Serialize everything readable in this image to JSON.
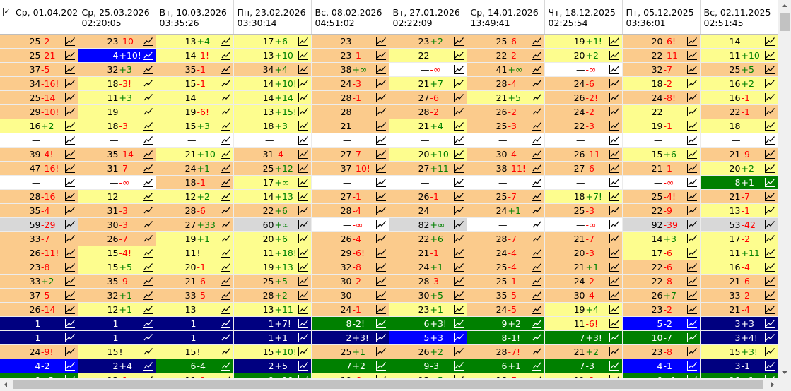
{
  "grid": {
    "select_all_mark": "✓",
    "icon": "trend-chart-icon",
    "colors": {
      "w": "#ffffff",
      "o": "#fbcb8c",
      "y": "#fdfd8e",
      "g": "#d8d8d8",
      "b": "#0000ff",
      "n": "#000080",
      "G": "#008000",
      "positive": "#008000",
      "negative": "#ff0000"
    },
    "columns": [
      {
        "date": "Ср, 01.04.2026 ...",
        "time": ""
      },
      {
        "date": "Ср, 25.03.2026",
        "time": "02:20:05"
      },
      {
        "date": "Вт, 10.03.2026",
        "time": "03:35:26"
      },
      {
        "date": "Пн, 23.02.2026",
        "time": "03:30:14"
      },
      {
        "date": "Вс, 08.02.2026",
        "time": "04:51:02"
      },
      {
        "date": "Вт, 27.01.2026",
        "time": "02:22:09"
      },
      {
        "date": "Ср, 14.01.2026",
        "time": "13:49:41"
      },
      {
        "date": "Чт, 18.12.2025",
        "time": "02:25:54"
      },
      {
        "date": "Пт, 05.12.2025",
        "time": "03:36:01"
      },
      {
        "date": "Вс, 02.11.2025",
        "time": "02:51:45"
      }
    ],
    "rows": [
      [
        [
          "25",
          "-2",
          "o"
        ],
        [
          "23",
          "-10",
          "o"
        ],
        [
          "13",
          "+4",
          "y"
        ],
        [
          "17",
          "+6",
          "y"
        ],
        [
          "23",
          "",
          "o"
        ],
        [
          "23",
          "+2",
          "o"
        ],
        [
          "25",
          "-6",
          "o"
        ],
        [
          "19",
          "+1!",
          "y"
        ],
        [
          "20",
          "-6!",
          "o"
        ],
        [
          "14",
          "",
          "y"
        ]
      ],
      [
        [
          "25",
          "-21",
          "o"
        ],
        [
          "4",
          "+10!",
          "b"
        ],
        [
          "14",
          "-1!",
          "y"
        ],
        [
          "13",
          "+10",
          "y"
        ],
        [
          "23",
          "-1",
          "o"
        ],
        [
          "22",
          "",
          "y"
        ],
        [
          "22",
          "-2",
          "o"
        ],
        [
          "20",
          "+2",
          "y"
        ],
        [
          "22",
          "-11",
          "o"
        ],
        [
          "11",
          "+10",
          "y"
        ]
      ],
      [
        [
          "37",
          "-5",
          "o"
        ],
        [
          "32",
          "+3",
          "o"
        ],
        [
          "35",
          "-1",
          "o"
        ],
        [
          "34",
          "+4",
          "o"
        ],
        [
          "38",
          "+∞",
          "o"
        ],
        [
          "—",
          "-∞",
          "w"
        ],
        [
          "41",
          "+∞",
          "o"
        ],
        [
          "—",
          "-∞",
          "w"
        ],
        [
          "32",
          "-7",
          "o"
        ],
        [
          "25",
          "+5",
          "o"
        ]
      ],
      [
        [
          "34",
          "-16!",
          "o"
        ],
        [
          "18",
          "-3!",
          "y"
        ],
        [
          "15",
          "-1",
          "y"
        ],
        [
          "14",
          "+10!",
          "y"
        ],
        [
          "24",
          "-3",
          "o"
        ],
        [
          "21",
          "+7",
          "y"
        ],
        [
          "28",
          "-4",
          "o"
        ],
        [
          "24",
          "-6",
          "o"
        ],
        [
          "18",
          "-2",
          "y"
        ],
        [
          "16",
          "+2",
          "y"
        ]
      ],
      [
        [
          "25",
          "-14",
          "o"
        ],
        [
          "11",
          "+3",
          "y"
        ],
        [
          "14",
          "",
          "y"
        ],
        [
          "14",
          "+14",
          "y"
        ],
        [
          "28",
          "-1",
          "o"
        ],
        [
          "27",
          "-6",
          "o"
        ],
        [
          "21",
          "+5",
          "y"
        ],
        [
          "26",
          "-2!",
          "o"
        ],
        [
          "24",
          "-8!",
          "o"
        ],
        [
          "16",
          "-1",
          "y"
        ]
      ],
      [
        [
          "29",
          "-10!",
          "o"
        ],
        [
          "19",
          "",
          "y"
        ],
        [
          "19",
          "-6!",
          "y"
        ],
        [
          "13",
          "+15!",
          "y"
        ],
        [
          "28",
          "",
          "o"
        ],
        [
          "28",
          "-2",
          "o"
        ],
        [
          "26",
          "-2",
          "o"
        ],
        [
          "24",
          "-2",
          "o"
        ],
        [
          "22",
          "",
          "y"
        ],
        [
          "22",
          "-1",
          "o"
        ]
      ],
      [
        [
          "16",
          "+2",
          "y"
        ],
        [
          "18",
          "-3",
          "y"
        ],
        [
          "15",
          "+3",
          "y"
        ],
        [
          "18",
          "+3",
          "y"
        ],
        [
          "21",
          "",
          "o"
        ],
        [
          "21",
          "+4",
          "y"
        ],
        [
          "25",
          "-3",
          "o"
        ],
        [
          "22",
          "-3",
          "o"
        ],
        [
          "19",
          "-1",
          "y"
        ],
        [
          "18",
          "",
          "y"
        ]
      ],
      [
        [
          "—",
          "",
          "w"
        ],
        [
          "—",
          "",
          "w"
        ],
        [
          "—",
          "",
          "w"
        ],
        [
          "—",
          "",
          "w"
        ],
        [
          "—",
          "",
          "w"
        ],
        [
          "—",
          "",
          "w"
        ],
        [
          "—",
          "",
          "w"
        ],
        [
          "—",
          "",
          "w"
        ],
        [
          "—",
          "",
          "w"
        ],
        [
          "—",
          "",
          "w"
        ]
      ],
      [
        [
          "39",
          "-4!",
          "o"
        ],
        [
          "35",
          "-14",
          "o"
        ],
        [
          "21",
          "+10",
          "y"
        ],
        [
          "31",
          "-4",
          "o"
        ],
        [
          "27",
          "-7",
          "o"
        ],
        [
          "20",
          "+10",
          "y"
        ],
        [
          "30",
          "-4",
          "o"
        ],
        [
          "26",
          "-11",
          "o"
        ],
        [
          "15",
          "+6",
          "y"
        ],
        [
          "21",
          "-9",
          "o"
        ]
      ],
      [
        [
          "47",
          "-16!",
          "o"
        ],
        [
          "31",
          "-7",
          "o"
        ],
        [
          "24",
          "+1",
          "o"
        ],
        [
          "25",
          "+12",
          "o"
        ],
        [
          "37",
          "-10!",
          "o"
        ],
        [
          "27",
          "+11",
          "o"
        ],
        [
          "38",
          "-11!",
          "o"
        ],
        [
          "27",
          "-6",
          "o"
        ],
        [
          "21",
          "-1",
          "o"
        ],
        [
          "20",
          "+2",
          "y"
        ]
      ],
      [
        [
          "—",
          "",
          "w"
        ],
        [
          "—",
          "-∞",
          "w"
        ],
        [
          "18",
          "-1",
          "o"
        ],
        [
          "17",
          "+∞",
          "y"
        ],
        [
          "—",
          "",
          "w"
        ],
        [
          "—",
          "",
          "w"
        ],
        [
          "—",
          "",
          "w"
        ],
        [
          "—",
          "",
          "w"
        ],
        [
          "—",
          "-∞",
          "w"
        ],
        [
          "8",
          "+1",
          "G"
        ]
      ],
      [
        [
          "28",
          "-16",
          "o"
        ],
        [
          "12",
          "",
          "y"
        ],
        [
          "12",
          "+2",
          "y"
        ],
        [
          "14",
          "+13",
          "y"
        ],
        [
          "27",
          "-1",
          "o"
        ],
        [
          "26",
          "-1",
          "o"
        ],
        [
          "25",
          "-7",
          "o"
        ],
        [
          "18",
          "+7!",
          "y"
        ],
        [
          "25",
          "-4!",
          "o"
        ],
        [
          "21",
          "-7",
          "o"
        ]
      ],
      [
        [
          "35",
          "-4",
          "o"
        ],
        [
          "31",
          "-3",
          "o"
        ],
        [
          "28",
          "-6",
          "o"
        ],
        [
          "22",
          "+6",
          "o"
        ],
        [
          "28",
          "-4",
          "o"
        ],
        [
          "24",
          "",
          "o"
        ],
        [
          "24",
          "+1",
          "o"
        ],
        [
          "25",
          "-3",
          "o"
        ],
        [
          "22",
          "-9",
          "o"
        ],
        [
          "13",
          "-1",
          "y"
        ]
      ],
      [
        [
          "59",
          "-29",
          "g"
        ],
        [
          "30",
          "-3",
          "o"
        ],
        [
          "27",
          "+33",
          "o"
        ],
        [
          "60",
          "+∞",
          "g"
        ],
        [
          "—",
          "-∞",
          "w"
        ],
        [
          "82",
          "+∞",
          "g"
        ],
        [
          "—",
          "",
          "w"
        ],
        [
          "—",
          "-∞",
          "w"
        ],
        [
          "92",
          "-39",
          "g"
        ],
        [
          "53",
          "-42",
          "g"
        ]
      ],
      [
        [
          "33",
          "-7",
          "o"
        ],
        [
          "26",
          "-7",
          "o"
        ],
        [
          "19",
          "+1",
          "y"
        ],
        [
          "20",
          "+6",
          "y"
        ],
        [
          "26",
          "-4",
          "o"
        ],
        [
          "22",
          "+6",
          "o"
        ],
        [
          "28",
          "-7",
          "o"
        ],
        [
          "21",
          "-7",
          "o"
        ],
        [
          "14",
          "+3",
          "y"
        ],
        [
          "17",
          "-2",
          "y"
        ]
      ],
      [
        [
          "26",
          "-11!",
          "o"
        ],
        [
          "15",
          "-4!",
          "y"
        ],
        [
          "11",
          "!",
          "y"
        ],
        [
          "11",
          "+18!",
          "y"
        ],
        [
          "29",
          "-6!",
          "o"
        ],
        [
          "21",
          "-1",
          "o"
        ],
        [
          "24",
          "-4",
          "o"
        ],
        [
          "20",
          "-3",
          "o"
        ],
        [
          "17",
          "-6",
          "y"
        ],
        [
          "11",
          "+11",
          "y"
        ]
      ],
      [
        [
          "23",
          "-8",
          "o"
        ],
        [
          "15",
          "+5",
          "y"
        ],
        [
          "20",
          "-1",
          "y"
        ],
        [
          "19",
          "+13",
          "y"
        ],
        [
          "32",
          "-8",
          "o"
        ],
        [
          "24",
          "+1",
          "o"
        ],
        [
          "25",
          "-4",
          "o"
        ],
        [
          "21",
          "+1",
          "o"
        ],
        [
          "22",
          "-6",
          "o"
        ],
        [
          "16",
          "-4",
          "y"
        ]
      ],
      [
        [
          "33",
          "+2",
          "o"
        ],
        [
          "35",
          "-9",
          "o"
        ],
        [
          "21",
          "-6",
          "o"
        ],
        [
          "25",
          "+5",
          "o"
        ],
        [
          "30",
          "-2",
          "o"
        ],
        [
          "28",
          "-3",
          "o"
        ],
        [
          "25",
          "-1",
          "o"
        ],
        [
          "24",
          "-2",
          "o"
        ],
        [
          "22",
          "-8",
          "o"
        ],
        [
          "21",
          "-6",
          "o"
        ]
      ],
      [
        [
          "37",
          "-5",
          "o"
        ],
        [
          "32",
          "+1",
          "o"
        ],
        [
          "33",
          "-5",
          "o"
        ],
        [
          "28",
          "+2",
          "o"
        ],
        [
          "30",
          "",
          "o"
        ],
        [
          "30",
          "+5",
          "o"
        ],
        [
          "35",
          "-5",
          "o"
        ],
        [
          "30",
          "-4",
          "o"
        ],
        [
          "26",
          "+7",
          "o"
        ],
        [
          "33",
          "-2",
          "o"
        ]
      ],
      [
        [
          "26",
          "-14",
          "o"
        ],
        [
          "12",
          "+1",
          "y"
        ],
        [
          "13",
          "",
          "y"
        ],
        [
          "13",
          "+11",
          "y"
        ],
        [
          "24",
          "-1",
          "o"
        ],
        [
          "23",
          "+1",
          "y"
        ],
        [
          "24",
          "-5",
          "o"
        ],
        [
          "19",
          "+4",
          "y"
        ],
        [
          "23",
          "-2",
          "o"
        ],
        [
          "21",
          "-4",
          "o"
        ]
      ],
      [
        [
          "1",
          "",
          "n"
        ],
        [
          "1",
          "",
          "n"
        ],
        [
          "1",
          "",
          "n"
        ],
        [
          "1",
          "+7!",
          "n"
        ],
        [
          "8",
          "-2!",
          "G"
        ],
        [
          "6",
          "+3!",
          "G"
        ],
        [
          "9",
          "+2",
          "G"
        ],
        [
          "11",
          "-6!",
          "y"
        ],
        [
          "5",
          "-2",
          "b"
        ],
        [
          "3",
          "+3",
          "n"
        ]
      ],
      [
        [
          "1",
          "",
          "n"
        ],
        [
          "1",
          "",
          "n"
        ],
        [
          "1",
          "",
          "n"
        ],
        [
          "1",
          "+1",
          "n"
        ],
        [
          "2",
          "+3!",
          "n"
        ],
        [
          "5",
          "+3",
          "b"
        ],
        [
          "8",
          "-1!",
          "G"
        ],
        [
          "7",
          "+3!",
          "G"
        ],
        [
          "10",
          "-7",
          "G"
        ],
        [
          "3",
          "+4!",
          "n"
        ]
      ],
      [
        [
          "24",
          "-9!",
          "o"
        ],
        [
          "15",
          "!",
          "y"
        ],
        [
          "15",
          "!",
          "y"
        ],
        [
          "15",
          "+10!",
          "y"
        ],
        [
          "25",
          "+1",
          "o"
        ],
        [
          "26",
          "+2",
          "o"
        ],
        [
          "28",
          "-7!",
          "o"
        ],
        [
          "21",
          "+2",
          "o"
        ],
        [
          "23",
          "-8",
          "o"
        ],
        [
          "15",
          "+3!",
          "y"
        ]
      ],
      [
        [
          "4",
          "-2",
          "b"
        ],
        [
          "2",
          "+4",
          "n"
        ],
        [
          "6",
          "-4",
          "G"
        ],
        [
          "2",
          "+5",
          "n"
        ],
        [
          "7",
          "+2",
          "G"
        ],
        [
          "9",
          "-3",
          "G"
        ],
        [
          "6",
          "+1",
          "G"
        ],
        [
          "7",
          "-3",
          "G"
        ],
        [
          "4",
          "-1",
          "b"
        ],
        [
          "3",
          "-1",
          "n"
        ]
      ],
      [
        [
          "9",
          "+3",
          "G"
        ],
        [
          "12",
          "-1",
          "y"
        ],
        [
          "11",
          "-2",
          "y"
        ],
        [
          "9",
          "+10",
          "G"
        ],
        [
          "19",
          "-6",
          "y"
        ],
        [
          "13",
          "+5",
          "y"
        ],
        [
          "18",
          "-7",
          "y"
        ],
        [
          "11",
          "-2",
          "y"
        ],
        [
          "9",
          "+1",
          "G"
        ],
        [
          "10",
          "+1",
          "G"
        ]
      ],
      [
        [
          "8",
          "-2",
          "G"
        ],
        [
          "1",
          "+5",
          "n"
        ],
        [
          "6",
          "-3",
          "G"
        ],
        [
          "7",
          "+1",
          "G"
        ],
        [
          "5",
          "+2",
          "b"
        ],
        [
          "7",
          "+1",
          "G"
        ],
        [
          "8",
          "-1",
          "G"
        ],
        [
          "8",
          "+4",
          "G"
        ],
        [
          "4",
          "-1",
          "b"
        ],
        [
          "3",
          "+1",
          "n"
        ]
      ]
    ]
  }
}
